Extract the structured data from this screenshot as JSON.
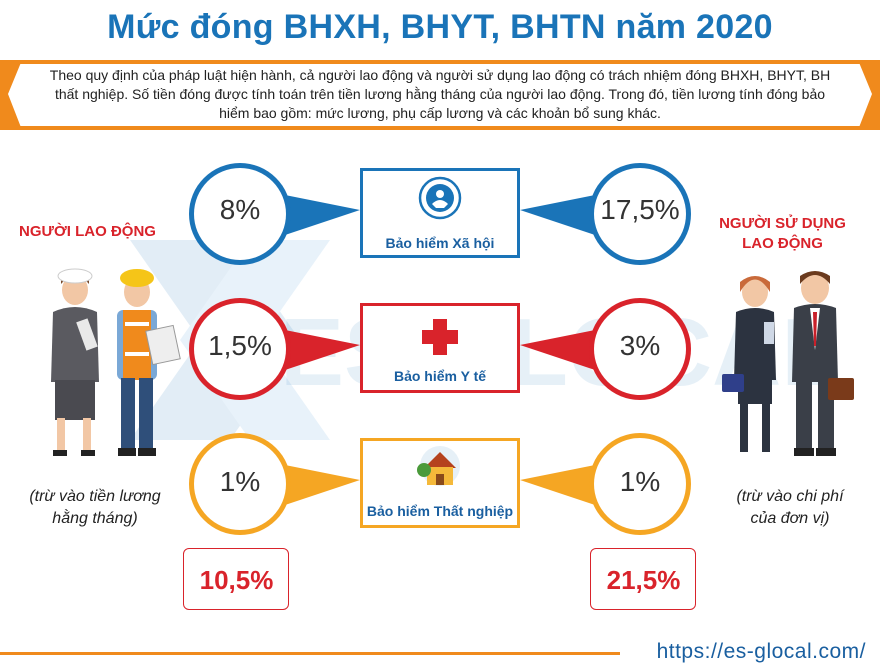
{
  "title": "Mức đóng BHXH, BHYT, BHTN năm 2020",
  "intro": "Theo quy định của pháp luật hiện hành, cả người lao động và người sử dụng lao động có trách nhiệm đóng BHXH, BHYT, BH thất nghiệp. Số tiền đóng được tính toán trên tiền lương hằng tháng của người lao động. Trong đó, tiền lương tính đóng bảo hiểm bao gồm: mức lương, phụ cấp lương và các khoản bổ sung khác.",
  "employee": {
    "title_line1": "NGƯỜI LAO ĐỘNG",
    "note_line1": "(trừ vào tiền lương",
    "note_line2": "hằng tháng)",
    "total": "10,5%"
  },
  "employer": {
    "title_line1": "NGƯỜI SỬ DỤNG",
    "title_line2": "LAO ĐỘNG",
    "note_line1": "(trừ vào chi phí",
    "note_line2": "của đơn vị)",
    "total": "21,5%"
  },
  "rows": [
    {
      "label": "Bảo hiểm Xã hội",
      "employee_rate": "8%",
      "employer_rate": "17,5%",
      "color": "#1a74b8",
      "icon": "social-insurance-logo-icon"
    },
    {
      "label": "Bảo hiểm Y tế",
      "employee_rate": "1,5%",
      "employer_rate": "3%",
      "color": "#d9232b",
      "icon": "red-cross-icon"
    },
    {
      "label": "Bảo hiểm Thất nghiệp",
      "employee_rate": "1%",
      "employer_rate": "1%",
      "color": "#f5a623",
      "icon": "house-icon"
    }
  ],
  "watermark": "ES GLOCAL",
  "url": "https://es-glocal.com/"
}
